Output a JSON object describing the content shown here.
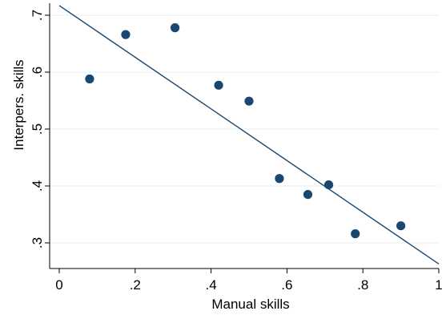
{
  "chart_data": {
    "type": "scatter",
    "xlabel": "Manual skills",
    "ylabel": "Interpers. skills",
    "xlim": [
      0,
      1
    ],
    "ylim": [
      0.3,
      0.7
    ],
    "xticks": [
      0,
      0.2,
      0.4,
      0.6,
      0.8,
      1
    ],
    "xtick_labels": [
      "0",
      ".2",
      ".4",
      ".6",
      ".8",
      "1"
    ],
    "yticks": [
      0.3,
      0.4,
      0.5,
      0.6,
      0.7
    ],
    "ytick_labels": [
      ".3",
      ".4",
      ".5",
      ".6",
      ".7"
    ],
    "grid": true,
    "series": [
      {
        "type": "scatter",
        "x": [
          0.08,
          0.175,
          0.305,
          0.42,
          0.5,
          0.58,
          0.655,
          0.71,
          0.78,
          0.9
        ],
        "y": [
          0.588,
          0.666,
          0.678,
          0.577,
          0.549,
          0.413,
          0.385,
          0.402,
          0.316,
          0.33
        ]
      },
      {
        "type": "line",
        "x": [
          0,
          1
        ],
        "y": [
          0.717,
          0.263
        ]
      }
    ],
    "colors": {
      "points": "#1a476f",
      "line": "#1a476f",
      "grid": "#eaf2f3",
      "axis": "#000000"
    }
  }
}
